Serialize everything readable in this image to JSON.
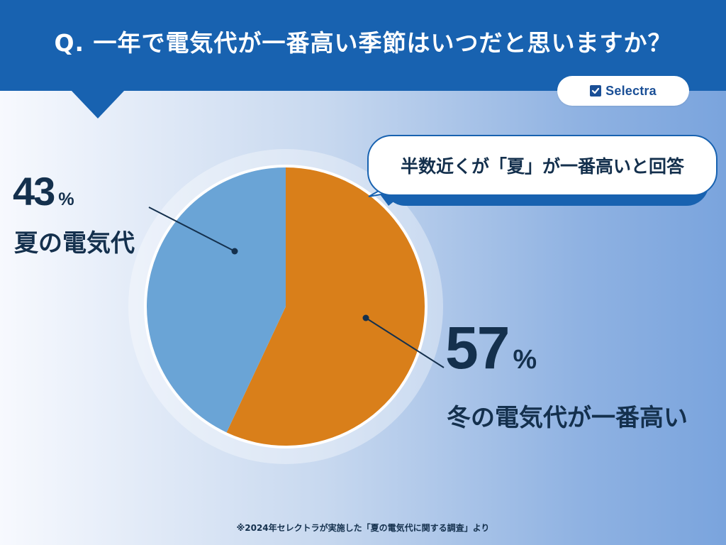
{
  "header": {
    "question": "Q. 一年で電気代が一番高い季節はいつだと思いますか？",
    "background_color": "#1862b0"
  },
  "logo": {
    "text": "Selectra",
    "icon": "checkbox-check-icon"
  },
  "callout": {
    "text": "半数近くが「夏」が一番高いと回答"
  },
  "chart_data": {
    "type": "pie",
    "start_angle_deg": 0,
    "direction": "clockwise",
    "slices": [
      {
        "label": "冬の電気代が一番高い",
        "value": 57,
        "display": "57",
        "unit": "%",
        "color": "#d97f1a"
      },
      {
        "label": "夏の電気代",
        "value": 43,
        "display": "43",
        "unit": "%",
        "color": "#6aa4d6"
      }
    ],
    "border_color": "#ffffff"
  },
  "footnote": "※2024年セレクトラが実施した「夏の電気代に関する調査」より"
}
